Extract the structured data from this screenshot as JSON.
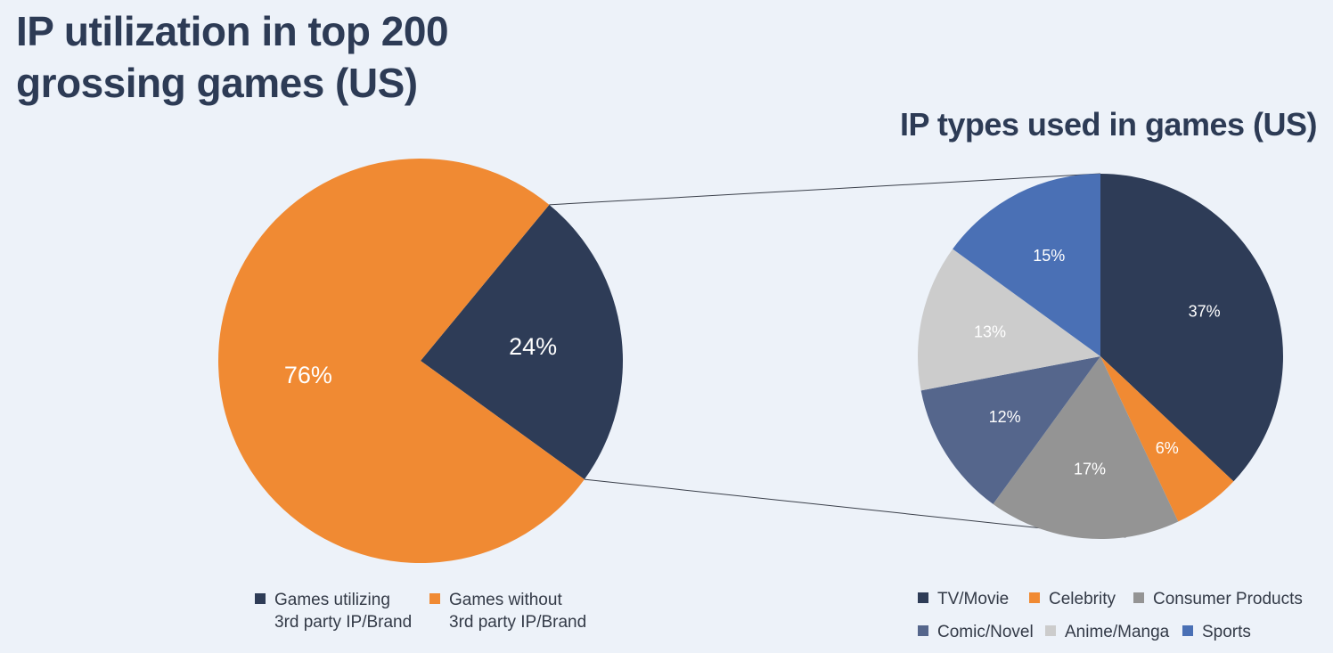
{
  "chart_data": [
    {
      "type": "pie",
      "title_lines": [
        "IP utilization in top 200",
        "grossing games (US)"
      ],
      "slices": [
        {
          "label_lines": [
            "Games utilizing",
            "3rd party IP/Brand"
          ],
          "value": 24,
          "display": "24%",
          "color": "#2e3c57"
        },
        {
          "label_lines": [
            "Games without",
            "3rd party IP/Brand"
          ],
          "value": 76,
          "display": "76%",
          "color": "#f08a33"
        }
      ],
      "legend_position": "bottom"
    },
    {
      "type": "pie",
      "title": "IP types used in games (US)",
      "slices": [
        {
          "label": "TV/Movie",
          "value": 37,
          "display": "37%",
          "color": "#2e3c57"
        },
        {
          "label": "Celebrity",
          "value": 6,
          "display": "6%",
          "color": "#f08a33"
        },
        {
          "label": "Consumer Products",
          "value": 17,
          "display": "17%",
          "color": "#949494"
        },
        {
          "label": "Comic/Novel",
          "value": 12,
          "display": "12%",
          "color": "#55668c"
        },
        {
          "label": "Anime/Manga",
          "value": 13,
          "display": "13%",
          "color": "#cccccc"
        },
        {
          "label": "Sports",
          "value": 15,
          "display": "15%",
          "color": "#4a70b5"
        }
      ],
      "legend_position": "bottom"
    }
  ]
}
